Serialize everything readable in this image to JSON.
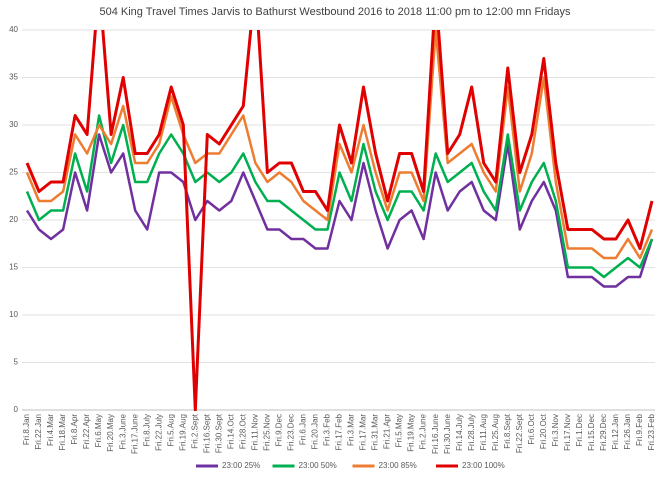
{
  "chart_data": {
    "type": "line",
    "title": "504 King Travel Times Jarvis to Bathurst Westbound 2016 to 2018 11:00 pm to 12:00 mn Fridays",
    "categories": [
      "Fri.8.Jan",
      "Fri.22.Jan",
      "Fri.4.Mar",
      "Fri.18.Mar",
      "Fri.8.Apr",
      "Fri.22.Apr",
      "Fri.6.May",
      "Fri.20.May",
      "Fri.3.June",
      "Fri.17.June",
      "Fri.8.July",
      "Fri.22.July",
      "Fri.5.Aug",
      "Fri.19.Aug",
      "Fri.2.Sept",
      "Fri.16.Sept",
      "Fri.30.Sept",
      "Fri.14.Oct",
      "Fri.28.Oct",
      "Fri.11.Nov",
      "Fri.25.Nov",
      "Fri.9.Dec",
      "Fri.23.Dec",
      "Fri.6.Jan",
      "Fri.20.Jan",
      "Fri.3.Feb",
      "Fri.17.Feb",
      "Fri.3.Mar",
      "Fri.17.Mar",
      "Fri.31.Mar",
      "Fri.21.Apr",
      "Fri.5.May",
      "Fri.19.May",
      "Fri.2.June",
      "Fri.16.June",
      "Fri.30.June",
      "Fri.14.July",
      "Fri.28.July",
      "Fri.11.Aug",
      "Fri.25.Aug",
      "Fri.8.Sept",
      "Fri.22.Sept",
      "Fri.6.Oct",
      "Fri.20.Oct",
      "Fri.3.Nov",
      "Fri.17.Nov",
      "Fri.1.Dec",
      "Fri.15.Dec",
      "Fri.29.Dec",
      "Fri.12.Jan",
      "Fri.26.Jan",
      "Fri.9.Feb",
      "Fri.23.Feb"
    ],
    "series": [
      {
        "name": "23:00 25%",
        "color": "#7030a0",
        "values": [
          21,
          19,
          18,
          19,
          25,
          21,
          29,
          25,
          27,
          21,
          19,
          25,
          25,
          24,
          20,
          22,
          21,
          22,
          25,
          22,
          19,
          19,
          18,
          18,
          17,
          17,
          22,
          20,
          26,
          21,
          17,
          20,
          21,
          18,
          25,
          21,
          23,
          24,
          21,
          20,
          28,
          19,
          22,
          24,
          21,
          14,
          14,
          14,
          13,
          13,
          14,
          14,
          18
        ]
      },
      {
        "name": "23:00 50%",
        "color": "#00b050",
        "values": [
          23,
          20,
          21,
          21,
          27,
          23,
          31,
          26,
          30,
          24,
          24,
          27,
          29,
          27,
          24,
          25,
          24,
          25,
          27,
          24,
          22,
          22,
          21,
          20,
          19,
          19,
          25,
          22,
          28,
          23,
          20,
          23,
          23,
          21,
          27,
          24,
          25,
          26,
          23,
          21,
          29,
          21,
          24,
          26,
          22,
          15,
          15,
          15,
          14,
          15,
          16,
          15,
          18
        ]
      },
      {
        "name": "23:00 85%",
        "color": "#ed7d31",
        "values": [
          25,
          22,
          22,
          23,
          29,
          27,
          30,
          28,
          32,
          26,
          26,
          28,
          33,
          29,
          26,
          27,
          27,
          29,
          31,
          26,
          24,
          25,
          24,
          22,
          21,
          20,
          28,
          25,
          30,
          25,
          21,
          25,
          25,
          22,
          40,
          26,
          27,
          28,
          25,
          23,
          34,
          23,
          27,
          35,
          24,
          17,
          17,
          17,
          16,
          16,
          18,
          16,
          19
        ]
      },
      {
        "name": "23:00 100%",
        "color": "#e00000",
        "values": [
          26,
          23,
          24,
          24,
          31,
          29,
          45,
          29,
          35,
          27,
          27,
          29,
          34,
          30,
          0,
          29,
          28,
          30,
          32,
          45,
          25,
          26,
          26,
          23,
          23,
          21,
          30,
          26,
          34,
          27,
          22,
          27,
          27,
          23,
          44,
          27,
          29,
          34,
          26,
          24,
          36,
          25,
          29,
          37,
          26,
          19,
          19,
          19,
          18,
          18,
          20,
          17,
          22
        ]
      }
    ],
    "ylim": [
      0,
      40
    ],
    "yticks": [
      0,
      5,
      10,
      15,
      20,
      25,
      30,
      35,
      40
    ],
    "grid": true,
    "legend": "bottom"
  }
}
